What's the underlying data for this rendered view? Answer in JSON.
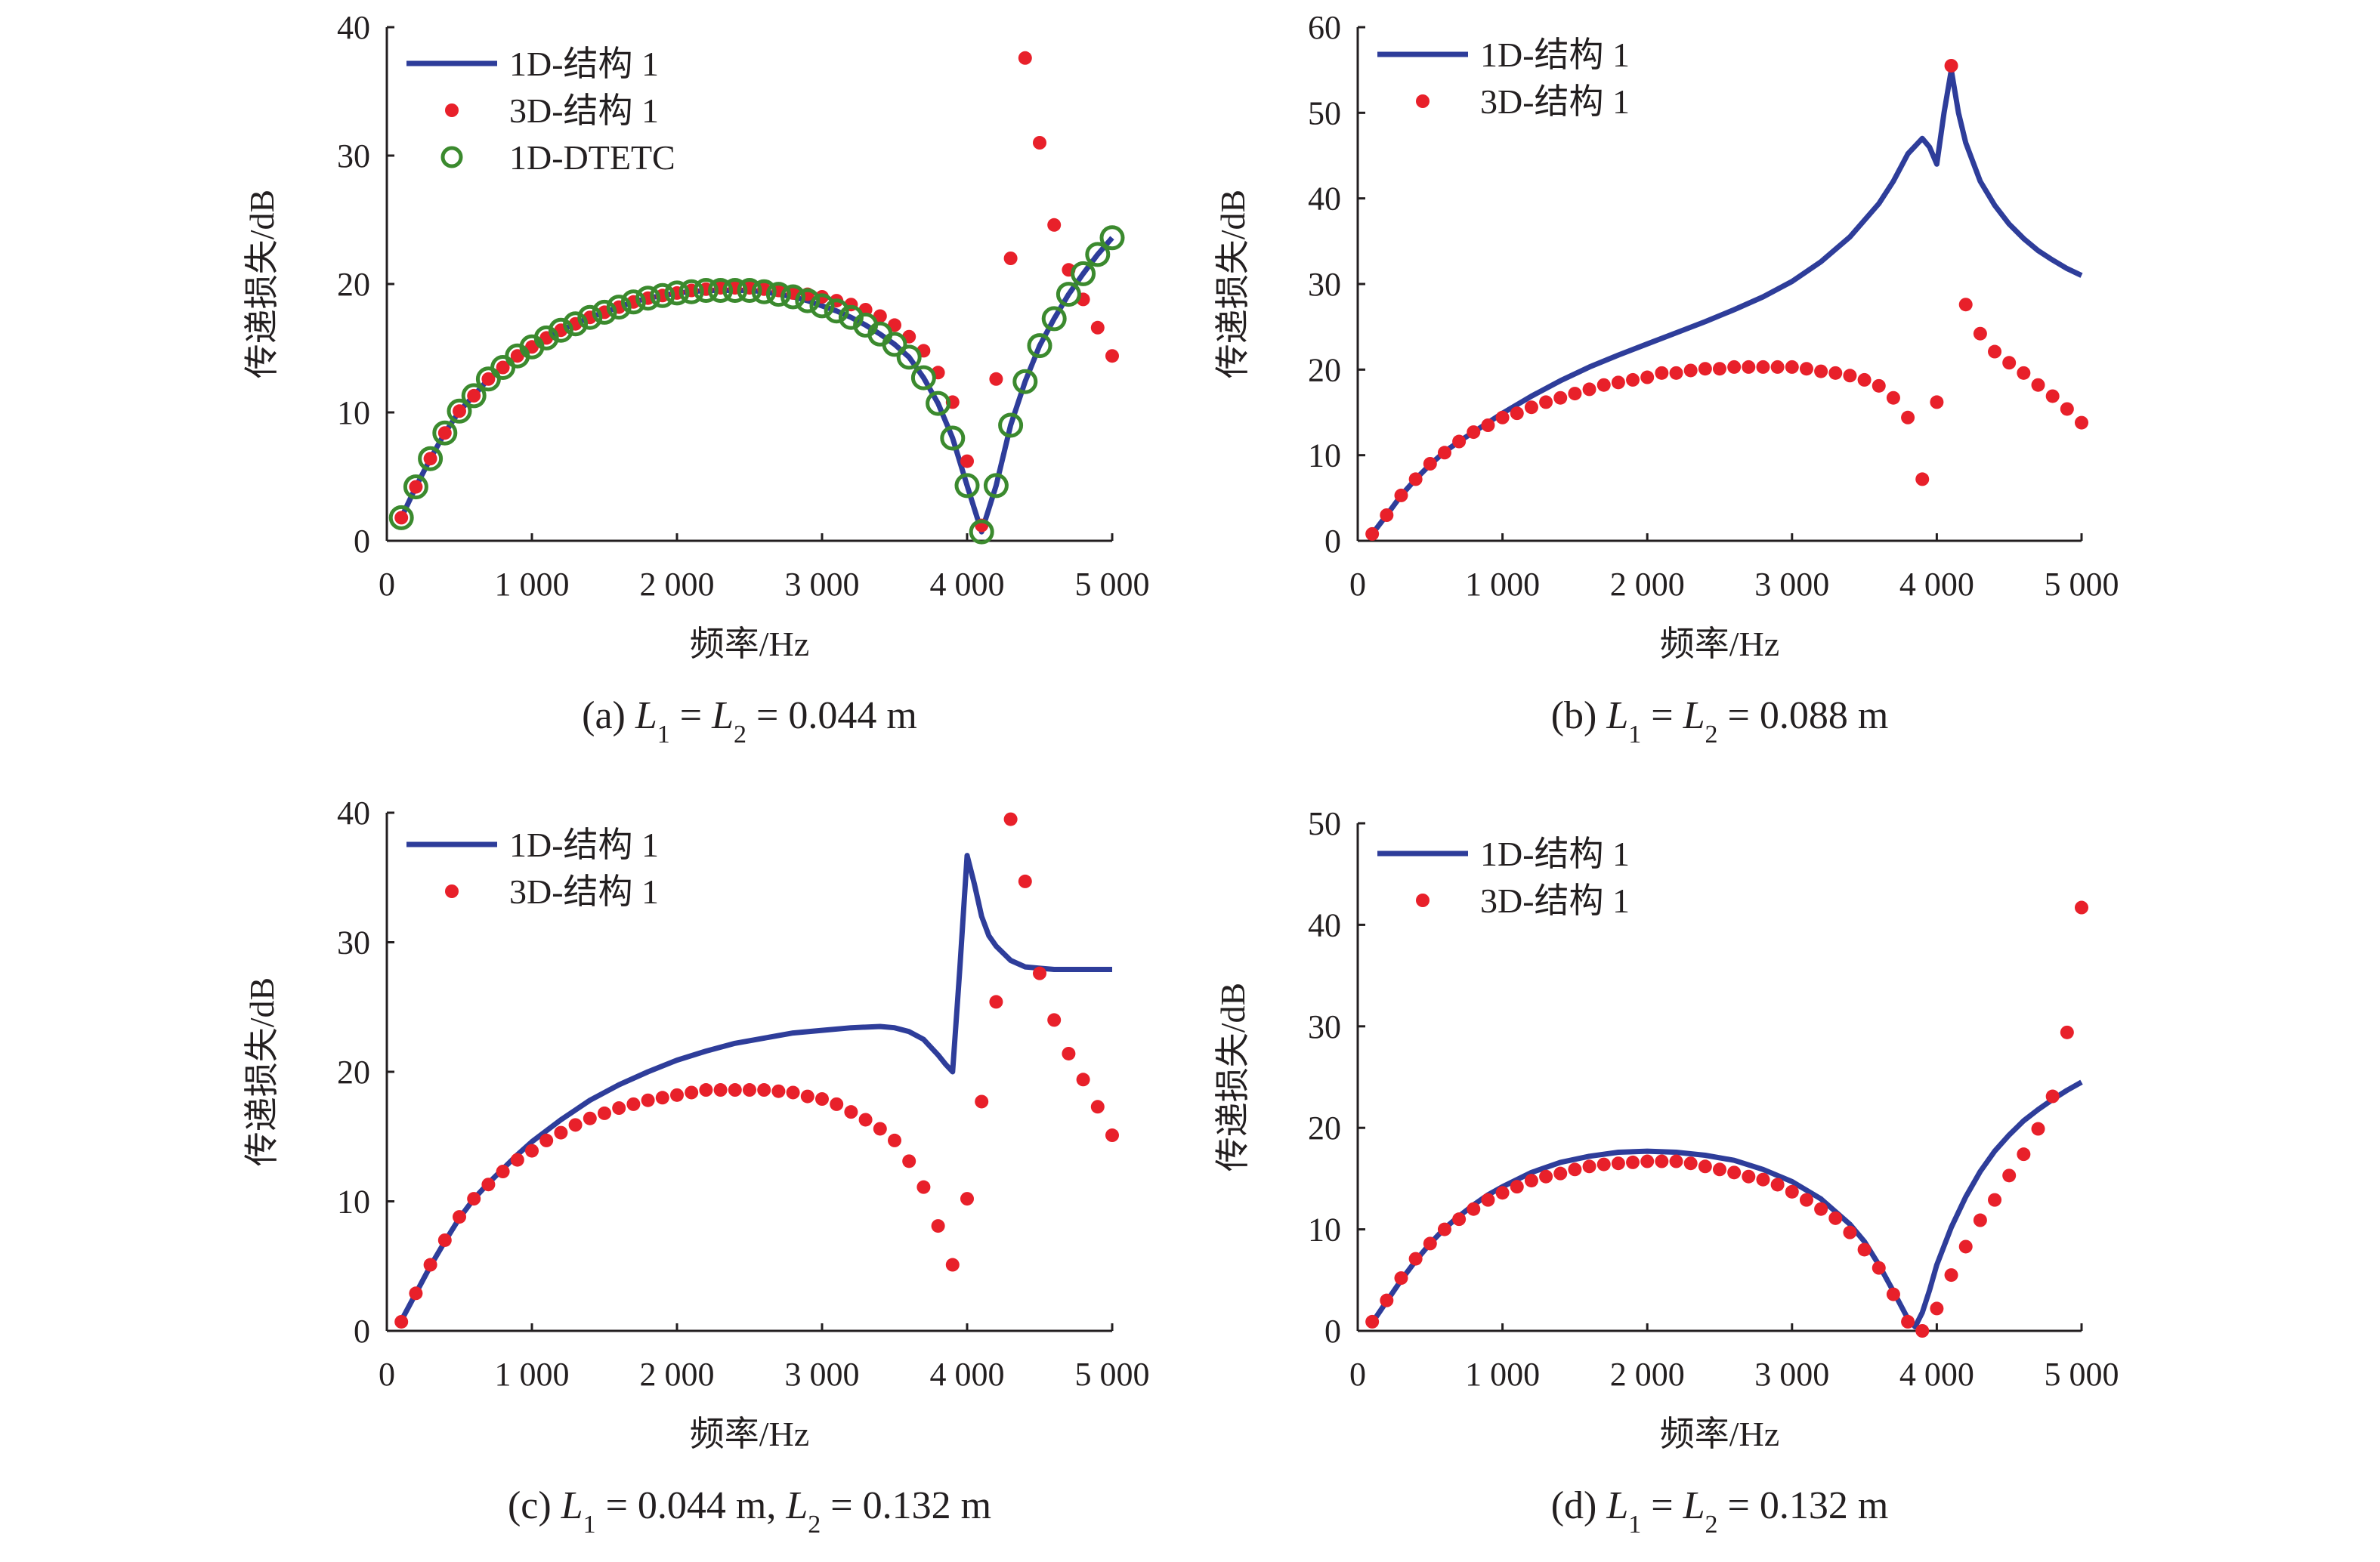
{
  "chart_data": [
    {
      "id": "a",
      "type": "line",
      "caption": {
        "prefix": "(a) ",
        "parts": [
          [
            "L",
            "1"
          ],
          " = ",
          [
            "L",
            "2"
          ],
          " = 0.044 m"
        ]
      },
      "caption_text": "(a) L1 = L2 = 0.044 m",
      "xlabel": "频率/Hz",
      "ylabel": "传递损失/dB",
      "xlim": [
        0,
        5000
      ],
      "ylim": [
        0,
        40
      ],
      "xticks": [
        0,
        1000,
        2000,
        3000,
        4000,
        5000
      ],
      "xtick_labels": [
        "0",
        "1 000",
        "2 000",
        "3 000",
        "4 000",
        "5 000"
      ],
      "yticks": [
        0,
        10,
        20,
        30,
        40
      ],
      "ytick_labels": [
        "0",
        "10",
        "20",
        "30",
        "40"
      ],
      "grid": false,
      "legend_position": "top-left",
      "legend": [
        "1D-结构 1",
        "3D-结构 1",
        "1D-DTETC"
      ],
      "x": [
        100,
        200,
        300,
        400,
        500,
        600,
        700,
        800,
        900,
        1000,
        1100,
        1200,
        1300,
        1400,
        1500,
        1600,
        1700,
        1800,
        1900,
        2000,
        2100,
        2200,
        2300,
        2400,
        2500,
        2600,
        2700,
        2800,
        2900,
        3000,
        3100,
        3200,
        3300,
        3400,
        3500,
        3600,
        3700,
        3800,
        3900,
        4000,
        4100,
        4200,
        4300,
        4400,
        4500,
        4600,
        4700,
        4800,
        4900,
        5000
      ],
      "series": [
        {
          "name": "1D-结构 1",
          "style": "line",
          "color": "#2e3d9a",
          "values": [
            1.8,
            4.2,
            6.4,
            8.4,
            10.1,
            11.3,
            12.6,
            13.5,
            14.4,
            15.1,
            15.8,
            16.4,
            16.9,
            17.4,
            17.8,
            18.2,
            18.6,
            18.9,
            19.1,
            19.3,
            19.4,
            19.5,
            19.5,
            19.5,
            19.5,
            19.4,
            19.2,
            19.0,
            18.7,
            18.3,
            17.9,
            17.4,
            16.8,
            16.1,
            15.3,
            14.3,
            12.7,
            10.7,
            8.0,
            4.3,
            0.7,
            4.3,
            9.0,
            12.4,
            15.2,
            17.3,
            19.2,
            20.8,
            22.3,
            23.6
          ]
        },
        {
          "name": "3D-结构 1",
          "style": "dot",
          "color": "#e8202a",
          "values": [
            1.8,
            4.2,
            6.4,
            8.4,
            10.1,
            11.3,
            12.6,
            13.5,
            14.4,
            15.1,
            15.8,
            16.4,
            16.9,
            17.4,
            17.8,
            18.2,
            18.6,
            18.9,
            19.1,
            19.3,
            19.5,
            19.6,
            19.7,
            19.7,
            19.7,
            19.6,
            19.5,
            19.3,
            19.2,
            19.0,
            18.7,
            18.4,
            18.0,
            17.5,
            16.8,
            15.9,
            14.8,
            13.1,
            10.8,
            6.2,
            1.2,
            12.6,
            22.0,
            37.6,
            31.0,
            24.6,
            21.1,
            18.8,
            16.6,
            14.4
          ]
        },
        {
          "name": "1D-DTETC",
          "style": "circle",
          "color": "#3b8a2e",
          "values": [
            1.8,
            4.2,
            6.4,
            8.4,
            10.1,
            11.3,
            12.6,
            13.5,
            14.4,
            15.1,
            15.8,
            16.4,
            16.9,
            17.4,
            17.8,
            18.2,
            18.6,
            18.9,
            19.1,
            19.3,
            19.4,
            19.5,
            19.5,
            19.5,
            19.5,
            19.4,
            19.2,
            19.0,
            18.7,
            18.3,
            17.9,
            17.4,
            16.8,
            16.1,
            15.3,
            14.3,
            12.7,
            10.7,
            8.0,
            4.3,
            0.7,
            4.3,
            9.0,
            12.4,
            15.2,
            17.3,
            19.2,
            20.8,
            22.3,
            23.6
          ]
        }
      ]
    },
    {
      "id": "b",
      "type": "line",
      "caption": {
        "prefix": "(b) ",
        "parts": [
          [
            "L",
            "1"
          ],
          " = ",
          [
            "L",
            "2"
          ],
          " = 0.088 m"
        ]
      },
      "caption_text": "(b) L1 = L2 = 0.088 m",
      "xlabel": "频率/Hz",
      "ylabel": "传递损失/dB",
      "xlim": [
        0,
        5000
      ],
      "ylim": [
        0,
        60
      ],
      "xticks": [
        0,
        1000,
        2000,
        3000,
        4000,
        5000
      ],
      "xtick_labels": [
        "0",
        "1 000",
        "2 000",
        "3 000",
        "4 000",
        "5 000"
      ],
      "yticks": [
        0,
        10,
        20,
        30,
        40,
        50,
        60
      ],
      "ytick_labels": [
        "0",
        "10",
        "20",
        "30",
        "40",
        "50",
        "60"
      ],
      "grid": false,
      "legend_position": "top-left",
      "legend": [
        "1D-结构 1",
        "3D-结构 1"
      ],
      "x": [
        100,
        200,
        300,
        400,
        500,
        600,
        700,
        800,
        900,
        1000,
        1100,
        1200,
        1300,
        1400,
        1500,
        1600,
        1700,
        1800,
        1900,
        2000,
        2100,
        2200,
        2300,
        2400,
        2500,
        2600,
        2700,
        2800,
        2900,
        3000,
        3100,
        3200,
        3300,
        3400,
        3500,
        3600,
        3700,
        3800,
        3900,
        4000,
        4100,
        4200,
        4300,
        4400,
        4500,
        4600,
        4700,
        4800,
        4900,
        5000
      ],
      "series": [
        {
          "name": "1D-结构 1",
          "style": "line",
          "color": "#2e3d9a",
          "x": [
            100,
            200,
            300,
            400,
            500,
            600,
            700,
            800,
            900,
            1000,
            1200,
            1400,
            1600,
            1800,
            2000,
            2200,
            2400,
            2600,
            2800,
            3000,
            3200,
            3400,
            3600,
            3700,
            3800,
            3900,
            3950,
            4000,
            4050,
            4100,
            4150,
            4200,
            4300,
            4400,
            4500,
            4600,
            4700,
            4800,
            4900,
            5000
          ],
          "values": [
            0.8,
            3.0,
            5.3,
            7.2,
            8.9,
            10.4,
            11.6,
            12.7,
            13.8,
            14.9,
            16.9,
            18.7,
            20.3,
            21.7,
            23.0,
            24.3,
            25.6,
            27.0,
            28.5,
            30.3,
            32.6,
            35.5,
            39.4,
            42.0,
            45.2,
            47.0,
            46.0,
            44.0,
            50.0,
            55.0,
            50.0,
            46.5,
            42.0,
            39.2,
            37.0,
            35.3,
            33.9,
            32.8,
            31.8,
            31.0
          ]
        },
        {
          "name": "3D-结构 1",
          "style": "dot",
          "color": "#e8202a",
          "values": [
            0.8,
            3.0,
            5.3,
            7.2,
            9.0,
            10.3,
            11.6,
            12.7,
            13.5,
            14.4,
            14.9,
            15.6,
            16.2,
            16.7,
            17.2,
            17.7,
            18.2,
            18.5,
            18.8,
            19.1,
            19.6,
            19.6,
            19.9,
            20.1,
            20.1,
            20.3,
            20.3,
            20.3,
            20.3,
            20.3,
            20.1,
            19.8,
            19.6,
            19.3,
            18.8,
            18.1,
            16.7,
            14.4,
            7.2,
            16.2,
            55.5,
            27.6,
            24.2,
            22.1,
            20.8,
            19.6,
            18.2,
            16.9,
            15.4,
            13.8
          ]
        }
      ]
    },
    {
      "id": "c",
      "type": "line",
      "caption": {
        "prefix": "(c) ",
        "parts": [
          [
            "L",
            "1"
          ],
          " = 0.044 m, ",
          [
            "L",
            "2"
          ],
          " = 0.132 m"
        ]
      },
      "caption_text": "(c) L1 = 0.044 m, L2 = 0.132 m",
      "xlabel": "频率/Hz",
      "ylabel": "传递损失/dB",
      "xlim": [
        0,
        5000
      ],
      "ylim": [
        0,
        40
      ],
      "xticks": [
        0,
        1000,
        2000,
        3000,
        4000,
        5000
      ],
      "xtick_labels": [
        "0",
        "1 000",
        "2 000",
        "3 000",
        "4 000",
        "5 000"
      ],
      "yticks": [
        0,
        10,
        20,
        30,
        40
      ],
      "ytick_labels": [
        "0",
        "10",
        "20",
        "30",
        "40"
      ],
      "grid": false,
      "legend_position": "top-left",
      "legend": [
        "1D-结构 1",
        "3D-结构 1"
      ],
      "x": [
        100,
        200,
        300,
        400,
        500,
        600,
        700,
        800,
        900,
        1000,
        1100,
        1200,
        1300,
        1400,
        1500,
        1600,
        1700,
        1800,
        1900,
        2000,
        2100,
        2200,
        2300,
        2400,
        2500,
        2600,
        2700,
        2800,
        2900,
        3000,
        3100,
        3200,
        3300,
        3400,
        3500,
        3600,
        3700,
        3800,
        3900,
        4000,
        4100,
        4200,
        4300,
        4400,
        4500,
        4600,
        4700,
        4800,
        4900,
        5000
      ],
      "series": [
        {
          "name": "1D-结构 1",
          "style": "line",
          "color": "#2e3d9a",
          "x": [
            100,
            200,
            300,
            400,
            500,
            600,
            700,
            800,
            900,
            1000,
            1200,
            1400,
            1600,
            1800,
            2000,
            2200,
            2400,
            2600,
            2800,
            3000,
            3200,
            3400,
            3500,
            3600,
            3700,
            3800,
            3850,
            3900,
            3950,
            4000,
            4050,
            4100,
            4150,
            4200,
            4300,
            4400,
            4500,
            4600,
            4700,
            4800,
            4900,
            5000
          ],
          "values": [
            0.8,
            2.9,
            5.0,
            6.9,
            8.7,
            10.2,
            11.4,
            12.5,
            13.6,
            14.6,
            16.3,
            17.8,
            19.0,
            20.0,
            20.9,
            21.6,
            22.2,
            22.6,
            23.0,
            23.2,
            23.4,
            23.5,
            23.4,
            23.1,
            22.5,
            21.3,
            20.6,
            20.0,
            28.0,
            36.7,
            34.5,
            32.0,
            30.5,
            29.7,
            28.6,
            28.1,
            28.0,
            27.9,
            27.9,
            27.9,
            27.9,
            27.9
          ]
        },
        {
          "name": "3D-结构 1",
          "style": "dot",
          "color": "#e8202a",
          "values": [
            0.7,
            2.9,
            5.1,
            7.0,
            8.8,
            10.2,
            11.3,
            12.3,
            13.2,
            13.9,
            14.7,
            15.3,
            15.9,
            16.4,
            16.8,
            17.2,
            17.5,
            17.8,
            18.0,
            18.2,
            18.4,
            18.6,
            18.6,
            18.6,
            18.6,
            18.6,
            18.5,
            18.4,
            18.1,
            17.9,
            17.5,
            16.9,
            16.3,
            15.6,
            14.7,
            13.1,
            11.1,
            8.1,
            5.1,
            10.2,
            17.7,
            25.4,
            39.5,
            34.7,
            27.6,
            24.0,
            21.4,
            19.4,
            17.3,
            15.1
          ]
        }
      ]
    },
    {
      "id": "d",
      "type": "line",
      "caption": {
        "prefix": "(d) ",
        "parts": [
          [
            "L",
            "1"
          ],
          " = ",
          [
            "L",
            "2"
          ],
          " = 0.132 m"
        ]
      },
      "caption_text": "(d) L1 = L2 = 0.132 m",
      "xlabel": "频率/Hz",
      "ylabel": "传递损失/dB",
      "xlim": [
        0,
        5000
      ],
      "ylim": [
        0,
        50
      ],
      "xticks": [
        0,
        1000,
        2000,
        3000,
        4000,
        5000
      ],
      "xtick_labels": [
        "0",
        "1 000",
        "2 000",
        "3 000",
        "4 000",
        "5 000"
      ],
      "yticks": [
        0,
        10,
        20,
        30,
        40,
        50
      ],
      "ytick_labels": [
        "0",
        "10",
        "20",
        "30",
        "40",
        "50"
      ],
      "grid": false,
      "legend_position": "top-left",
      "legend": [
        "1D-结构 1",
        "3D-结构 1"
      ],
      "x": [
        100,
        200,
        300,
        400,
        500,
        600,
        700,
        800,
        900,
        1000,
        1100,
        1200,
        1300,
        1400,
        1500,
        1600,
        1700,
        1800,
        1900,
        2000,
        2100,
        2200,
        2300,
        2400,
        2500,
        2600,
        2700,
        2800,
        2900,
        3000,
        3100,
        3200,
        3300,
        3400,
        3500,
        3600,
        3700,
        3800,
        3900,
        4000,
        4100,
        4200,
        4300,
        4400,
        4500,
        4600,
        4700,
        4800,
        4900,
        5000
      ],
      "series": [
        {
          "name": "1D-结构 1",
          "style": "line",
          "color": "#2e3d9a",
          "x": [
            100,
            200,
            300,
            400,
            500,
            600,
            700,
            800,
            900,
            1000,
            1200,
            1400,
            1600,
            1800,
            2000,
            2200,
            2400,
            2600,
            2800,
            3000,
            3200,
            3400,
            3500,
            3600,
            3700,
            3800,
            3850,
            3900,
            3950,
            4000,
            4100,
            4200,
            4300,
            4400,
            4500,
            4600,
            4700,
            4800,
            4900,
            5000
          ],
          "values": [
            0.8,
            2.9,
            5.0,
            6.9,
            8.6,
            10.1,
            11.3,
            12.4,
            13.4,
            14.2,
            15.6,
            16.6,
            17.2,
            17.6,
            17.7,
            17.6,
            17.3,
            16.8,
            15.9,
            14.7,
            13.0,
            10.5,
            8.8,
            6.5,
            3.9,
            1.2,
            0.4,
            1.8,
            4.0,
            6.5,
            10.2,
            13.2,
            15.7,
            17.7,
            19.3,
            20.7,
            21.8,
            22.8,
            23.7,
            24.5
          ]
        },
        {
          "name": "3D-结构 1",
          "style": "dot",
          "color": "#e8202a",
          "values": [
            0.9,
            3.0,
            5.2,
            7.1,
            8.6,
            10.0,
            11.0,
            12.0,
            12.9,
            13.6,
            14.2,
            14.8,
            15.2,
            15.5,
            15.9,
            16.2,
            16.4,
            16.5,
            16.6,
            16.7,
            16.7,
            16.7,
            16.5,
            16.2,
            15.9,
            15.6,
            15.2,
            14.9,
            14.4,
            13.7,
            12.9,
            12.0,
            11.1,
            9.7,
            8.0,
            6.2,
            3.6,
            0.9,
            0.0,
            2.2,
            5.5,
            8.3,
            10.9,
            12.9,
            15.3,
            17.4,
            19.9,
            23.1,
            29.4,
            41.7
          ]
        }
      ]
    }
  ]
}
